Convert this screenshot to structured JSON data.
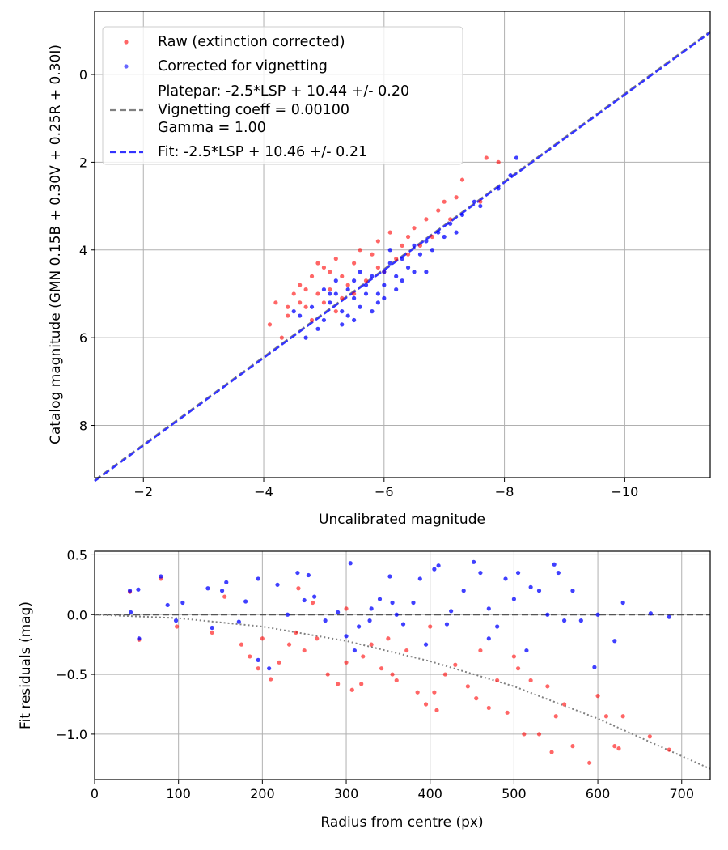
{
  "chart_data": [
    {
      "type": "scatter",
      "xlabel": "Uncalibrated magnitude",
      "ylabel": "Catalog magnitude (GMN 0.15B + 0.30V + 0.25R + 0.30I)",
      "xlim": [
        -1.19,
        -11.42
      ],
      "ylim": [
        9.19,
        -1.44
      ],
      "x_inverted": true,
      "y_inverted": true,
      "grid": true,
      "xticks": [
        -2,
        -4,
        -6,
        -8,
        -10
      ],
      "xtick_labels": [
        "−2",
        "−4",
        "−6",
        "−8",
        "−10"
      ],
      "yticks": [
        0,
        2,
        4,
        6,
        8
      ],
      "ytick_labels": [
        "0",
        "2",
        "4",
        "6",
        "8"
      ],
      "legend_position": "top-left",
      "legend": {
        "raw": "Raw (extinction corrected)",
        "corrected": "Corrected for vignetting",
        "platepar_line1": "Platepar: -2.5*LSP + 10.44 +/- 0.20",
        "platepar_line2": "Vignetting coeff = 0.00100",
        "platepar_line3": "Gamma = 1.00",
        "fit": "Fit: -2.5*LSP + 10.46 +/- 0.21"
      },
      "colors": {
        "raw": "#ff0000",
        "corrected": "#0000ff",
        "platepar": "#808080",
        "fit": "#3333ff"
      },
      "lines": {
        "platepar_intercept": 10.44,
        "fit_intercept": 10.46,
        "slope": 1
      },
      "series": [
        {
          "name": "raw",
          "points": [
            [
              -4.1,
              5.7
            ],
            [
              -4.2,
              5.2
            ],
            [
              -4.4,
              5.5
            ],
            [
              -4.5,
              5.0
            ],
            [
              -4.6,
              4.8
            ],
            [
              -4.7,
              5.3
            ],
            [
              -4.8,
              4.6
            ],
            [
              -4.9,
              5.0
            ],
            [
              -5.0,
              4.4
            ],
            [
              -5.1,
              4.9
            ],
            [
              -5.2,
              4.2
            ],
            [
              -5.3,
              4.6
            ],
            [
              -5.4,
              4.8
            ],
            [
              -5.5,
              4.3
            ],
            [
              -5.6,
              4.0
            ],
            [
              -5.8,
              4.1
            ],
            [
              -5.9,
              3.8
            ],
            [
              -6.0,
              4.5
            ],
            [
              -6.1,
              3.6
            ],
            [
              -6.3,
              3.9
            ],
            [
              -6.4,
              3.7
            ],
            [
              -6.5,
              3.5
            ],
            [
              -6.7,
              3.3
            ],
            [
              -6.9,
              3.1
            ],
            [
              -7.0,
              2.9
            ],
            [
              -7.1,
              3.3
            ],
            [
              -7.2,
              2.8
            ],
            [
              -7.3,
              2.4
            ],
            [
              -7.6,
              2.9
            ],
            [
              -7.7,
              1.9
            ],
            [
              -7.9,
              2.0
            ],
            [
              -4.3,
              6.0
            ],
            [
              -4.8,
              5.6
            ],
            [
              -5.2,
              5.4
            ],
            [
              -4.6,
              5.2
            ],
            [
              -5.0,
              5.2
            ],
            [
              -5.5,
              5.0
            ],
            [
              -4.9,
              4.3
            ],
            [
              -5.7,
              4.7
            ],
            [
              -6.2,
              4.2
            ],
            [
              -6.6,
              3.9
            ],
            [
              -5.3,
              5.1
            ],
            [
              -4.4,
              5.3
            ],
            [
              -6.8,
              3.7
            ],
            [
              -5.1,
              4.5
            ],
            [
              -5.9,
              4.4
            ],
            [
              -6.4,
              4.1
            ],
            [
              -4.7,
              4.9
            ]
          ]
        },
        {
          "name": "corrected",
          "points": [
            [
              -4.6,
              5.5
            ],
            [
              -4.8,
              5.3
            ],
            [
              -5.0,
              5.6
            ],
            [
              -5.1,
              5.2
            ],
            [
              -5.2,
              5.0
            ],
            [
              -5.3,
              5.4
            ],
            [
              -5.4,
              4.9
            ],
            [
              -5.5,
              5.1
            ],
            [
              -5.5,
              4.7
            ],
            [
              -5.6,
              5.3
            ],
            [
              -5.7,
              4.8
            ],
            [
              -5.8,
              4.6
            ],
            [
              -5.9,
              5.0
            ],
            [
              -6.0,
              4.5
            ],
            [
              -6.0,
              4.8
            ],
            [
              -6.1,
              4.3
            ],
            [
              -6.2,
              4.6
            ],
            [
              -6.3,
              4.2
            ],
            [
              -6.4,
              4.4
            ],
            [
              -6.5,
              3.9
            ],
            [
              -6.6,
              4.1
            ],
            [
              -6.7,
              3.8
            ],
            [
              -6.8,
              4.0
            ],
            [
              -6.9,
              3.6
            ],
            [
              -7.0,
              3.7
            ],
            [
              -7.1,
              3.4
            ],
            [
              -7.3,
              3.2
            ],
            [
              -7.5,
              2.9
            ],
            [
              -7.6,
              3.0
            ],
            [
              -7.9,
              2.6
            ],
            [
              -8.1,
              2.3
            ],
            [
              -8.2,
              1.9
            ],
            [
              -4.9,
              5.8
            ],
            [
              -5.3,
              5.7
            ],
            [
              -4.7,
              6.0
            ],
            [
              -5.6,
              4.5
            ],
            [
              -5.9,
              5.2
            ],
            [
              -6.2,
              4.9
            ],
            [
              -6.5,
              4.5
            ],
            [
              -5.0,
              4.9
            ],
            [
              -5.2,
              4.7
            ],
            [
              -5.4,
              5.5
            ],
            [
              -5.8,
              5.4
            ],
            [
              -6.1,
              4.0
            ],
            [
              -6.7,
              4.5
            ],
            [
              -7.2,
              3.6
            ],
            [
              -5.7,
              5.0
            ],
            [
              -6.3,
              4.7
            ],
            [
              -4.5,
              5.4
            ],
            [
              -5.1,
              5.0
            ],
            [
              -5.5,
              5.6
            ],
            [
              -6.0,
              5.1
            ]
          ]
        }
      ]
    },
    {
      "type": "scatter",
      "xlabel": "Radius from centre (px)",
      "ylabel": "Fit residuals (mag)",
      "xlim": [
        0,
        734
      ],
      "ylim": [
        -1.38,
        0.53
      ],
      "grid": true,
      "xticks": [
        0,
        100,
        200,
        300,
        400,
        500,
        600,
        700
      ],
      "xtick_labels": [
        "0",
        "100",
        "200",
        "300",
        "400",
        "500",
        "600",
        "700"
      ],
      "yticks": [
        0.5,
        0.0,
        -0.5,
        -1.0
      ],
      "ytick_labels": [
        "0.5",
        "0.0",
        "−0.5",
        "−1.0"
      ],
      "colors": {
        "raw": "#ff0000",
        "corrected": "#0000ff",
        "zero_line": "#555555",
        "trend": "#808080"
      },
      "zero_line": 0.0,
      "trend": [
        [
          0,
          0
        ],
        [
          100,
          -0.03
        ],
        [
          200,
          -0.1
        ],
        [
          300,
          -0.22
        ],
        [
          400,
          -0.39
        ],
        [
          500,
          -0.6
        ],
        [
          600,
          -0.87
        ],
        [
          734,
          -1.29
        ]
      ],
      "series": [
        {
          "name": "raw",
          "points": [
            [
              42,
              0.19
            ],
            [
              53,
              -0.21
            ],
            [
              79,
              0.3
            ],
            [
              98,
              -0.1
            ],
            [
              140,
              -0.15
            ],
            [
              155,
              0.15
            ],
            [
              175,
              -0.25
            ],
            [
              185,
              -0.35
            ],
            [
              195,
              -0.45
            ],
            [
              200,
              -0.2
            ],
            [
              210,
              -0.54
            ],
            [
              220,
              -0.4
            ],
            [
              232,
              -0.25
            ],
            [
              240,
              -0.15
            ],
            [
              250,
              -0.3
            ],
            [
              265,
              -0.2
            ],
            [
              278,
              -0.5
            ],
            [
              290,
              -0.58
            ],
            [
              300,
              -0.4
            ],
            [
              307,
              -0.63
            ],
            [
              318,
              -0.58
            ],
            [
              330,
              -0.25
            ],
            [
              342,
              -0.45
            ],
            [
              355,
              -0.5
            ],
            [
              360,
              -0.55
            ],
            [
              372,
              -0.3
            ],
            [
              385,
              -0.65
            ],
            [
              395,
              -0.75
            ],
            [
              405,
              -0.65
            ],
            [
              408,
              -0.8
            ],
            [
              418,
              -0.5
            ],
            [
              430,
              -0.42
            ],
            [
              445,
              -0.6
            ],
            [
              455,
              -0.7
            ],
            [
              470,
              -0.78
            ],
            [
              480,
              -0.55
            ],
            [
              492,
              -0.82
            ],
            [
              500,
              -0.35
            ],
            [
              512,
              -1.0
            ],
            [
              520,
              -0.55
            ],
            [
              530,
              -1.0
            ],
            [
              545,
              -1.15
            ],
            [
              550,
              -0.85
            ],
            [
              560,
              -0.75
            ],
            [
              570,
              -1.1
            ],
            [
              590,
              -1.24
            ],
            [
              600,
              -0.68
            ],
            [
              610,
              -0.85
            ],
            [
              620,
              -1.1
            ],
            [
              630,
              -0.85
            ],
            [
              662,
              -1.02
            ],
            [
              685,
              -1.13
            ],
            [
              350,
              -0.2
            ],
            [
              260,
              0.1
            ],
            [
              460,
              -0.3
            ],
            [
              540,
              -0.6
            ],
            [
              625,
              -1.12
            ],
            [
              300,
              0.05
            ],
            [
              400,
              -0.1
            ],
            [
              243,
              0.22
            ],
            [
              320,
              -0.35
            ],
            [
              505,
              -0.45
            ]
          ]
        },
        {
          "name": "corrected",
          "points": [
            [
              42,
              0.2
            ],
            [
              43,
              0.02
            ],
            [
              52,
              0.21
            ],
            [
              53,
              -0.2
            ],
            [
              79,
              0.32
            ],
            [
              87,
              0.08
            ],
            [
              97,
              -0.05
            ],
            [
              105,
              0.1
            ],
            [
              135,
              0.22
            ],
            [
              140,
              -0.11
            ],
            [
              152,
              0.2
            ],
            [
              157,
              0.27
            ],
            [
              172,
              -0.06
            ],
            [
              180,
              0.11
            ],
            [
              195,
              0.3
            ],
            [
              208,
              -0.45
            ],
            [
              218,
              0.25
            ],
            [
              230,
              0.0
            ],
            [
              242,
              0.35
            ],
            [
              255,
              0.33
            ],
            [
              262,
              0.15
            ],
            [
              275,
              -0.05
            ],
            [
              290,
              0.02
            ],
            [
              300,
              -0.18
            ],
            [
              305,
              0.43
            ],
            [
              315,
              -0.1
            ],
            [
              328,
              -0.05
            ],
            [
              340,
              0.13
            ],
            [
              352,
              0.32
            ],
            [
              360,
              0.0
            ],
            [
              368,
              -0.08
            ],
            [
              380,
              0.1
            ],
            [
              388,
              0.3
            ],
            [
              395,
              -0.25
            ],
            [
              405,
              0.38
            ],
            [
              410,
              0.41
            ],
            [
              425,
              0.03
            ],
            [
              440,
              0.2
            ],
            [
              452,
              0.44
            ],
            [
              460,
              0.35
            ],
            [
              470,
              0.05
            ],
            [
              480,
              -0.1
            ],
            [
              490,
              0.3
            ],
            [
              500,
              0.13
            ],
            [
              515,
              -0.3
            ],
            [
              520,
              0.23
            ],
            [
              530,
              0.2
            ],
            [
              540,
              0.0
            ],
            [
              548,
              0.42
            ],
            [
              553,
              0.35
            ],
            [
              560,
              -0.05
            ],
            [
              570,
              0.2
            ],
            [
              580,
              -0.05
            ],
            [
              596,
              -0.44
            ],
            [
              600,
              0.0
            ],
            [
              620,
              -0.22
            ],
            [
              630,
              0.1
            ],
            [
              663,
              0.01
            ],
            [
              685,
              -0.02
            ],
            [
              470,
              -0.2
            ],
            [
              420,
              -0.08
            ],
            [
              330,
              0.05
            ],
            [
              250,
              0.12
            ],
            [
              355,
              0.1
            ],
            [
              505,
              0.35
            ],
            [
              195,
              -0.38
            ],
            [
              310,
              -0.3
            ]
          ]
        }
      ]
    }
  ]
}
